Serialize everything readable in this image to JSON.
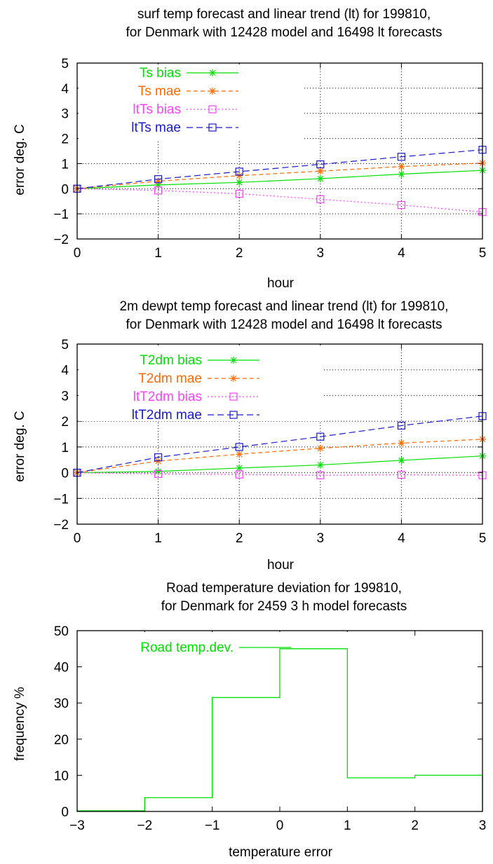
{
  "chart_data": [
    {
      "type": "line",
      "title": [
        "surf temp forecast and linear trend (lt) for 199810,",
        "for Denmark with 12428 model and 16498 lt forecasts"
      ],
      "xlabel": "hour",
      "ylabel": "error deg. C",
      "xlim": [
        0,
        5
      ],
      "ylim": [
        -2,
        5
      ],
      "xticks": [
        "0",
        "1",
        "2",
        "3",
        "4",
        "5"
      ],
      "yticks": [
        "−2",
        "−1",
        "0",
        "1",
        "2",
        "3",
        "4",
        "5"
      ],
      "grid": true,
      "legend_position": "top-left",
      "x": [
        0,
        1,
        2,
        3,
        4,
        5
      ],
      "series": [
        {
          "name": "Ts bias",
          "values": [
            0,
            0.15,
            0.25,
            0.4,
            0.58,
            0.73
          ],
          "color": "#00e000",
          "marker": "star",
          "dash": "solid"
        },
        {
          "name": "Ts mae",
          "values": [
            0,
            0.3,
            0.52,
            0.7,
            0.88,
            1.02
          ],
          "color": "#ff6a00",
          "marker": "star",
          "dash": "dashed"
        },
        {
          "name": "ltTs bias",
          "values": [
            0,
            -0.07,
            -0.2,
            -0.42,
            -0.65,
            -0.93
          ],
          "color": "#ff40ff",
          "marker": "square",
          "dash": "dotted"
        },
        {
          "name": "ltTs mae",
          "values": [
            0,
            0.38,
            0.68,
            0.97,
            1.27,
            1.55
          ],
          "color": "#1a1acc",
          "marker": "square",
          "dash": "longdash"
        }
      ]
    },
    {
      "type": "line",
      "title": [
        "2m dewpt temp forecast and linear trend (lt) for 199810,",
        "for Denmark with 12428 model and 16498 lt forecasts"
      ],
      "xlabel": "hour",
      "ylabel": "error deg. C",
      "xlim": [
        0,
        5
      ],
      "ylim": [
        -2,
        5
      ],
      "xticks": [
        "0",
        "1",
        "2",
        "3",
        "4",
        "5"
      ],
      "yticks": [
        "−2",
        "−1",
        "0",
        "1",
        "2",
        "3",
        "4",
        "5"
      ],
      "grid": true,
      "legend_position": "top-left",
      "x": [
        0,
        1,
        2,
        3,
        4,
        5
      ],
      "series": [
        {
          "name": "T2dm bias",
          "values": [
            0,
            0.05,
            0.18,
            0.3,
            0.48,
            0.65
          ],
          "color": "#00e000",
          "marker": "star",
          "dash": "solid"
        },
        {
          "name": "T2dm mae",
          "values": [
            0,
            0.45,
            0.72,
            0.95,
            1.15,
            1.3
          ],
          "color": "#ff6a00",
          "marker": "star",
          "dash": "dashed"
        },
        {
          "name": "ltT2dm bias",
          "values": [
            0,
            -0.05,
            -0.07,
            -0.1,
            -0.08,
            -0.1
          ],
          "color": "#ff40ff",
          "marker": "square",
          "dash": "dotted"
        },
        {
          "name": "ltT2dm mae",
          "values": [
            0,
            0.6,
            1.0,
            1.4,
            1.83,
            2.2
          ],
          "color": "#1a1acc",
          "marker": "square",
          "dash": "longdash"
        }
      ]
    },
    {
      "type": "step",
      "title": [
        "Road temperature deviation for 199810,",
        "for Denmark for 2459 3 h model forecasts"
      ],
      "xlabel": "temperature error",
      "ylabel": "frequency %",
      "xlim": [
        -3,
        3
      ],
      "ylim": [
        0,
        50
      ],
      "xticks": [
        "−3",
        "−2",
        "−1",
        "0",
        "1",
        "2",
        "3"
      ],
      "yticks": [
        "0",
        "10",
        "20",
        "30",
        "40",
        "50"
      ],
      "grid": false,
      "legend_position": "top-left",
      "series": [
        {
          "name": "Road temp.dev.",
          "color": "#00e000",
          "bins": [
            -3,
            -2,
            -1,
            0,
            1,
            2,
            3
          ],
          "values": [
            0.2,
            3.8,
            31.5,
            45.0,
            9.3,
            10.0
          ]
        }
      ]
    }
  ]
}
